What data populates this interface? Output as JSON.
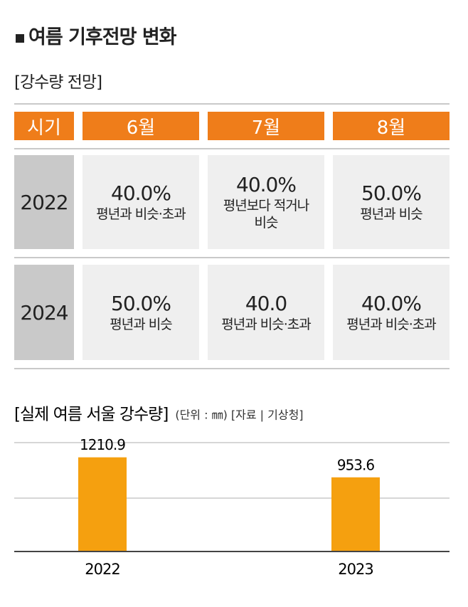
{
  "header": {
    "title": "여름 기후전망 변화"
  },
  "table": {
    "title": "[강수량 전망]",
    "columns": [
      "시기",
      "6월",
      "7월",
      "8월"
    ],
    "rows": [
      {
        "year": "2022",
        "cells": [
          {
            "value": "40.0%",
            "desc": "평년과 비슷·초과"
          },
          {
            "value": "40.0%",
            "desc": "평년보다 적거나 비슷"
          },
          {
            "value": "50.0%",
            "desc": "평년과 비슷"
          }
        ]
      },
      {
        "year": "2024",
        "cells": [
          {
            "value": "50.0%",
            "desc": "평년과 비슷"
          },
          {
            "value": "40.0",
            "desc": "평년과 비슷·초과"
          },
          {
            "value": "40.0%",
            "desc": "평년과 비슷·초과"
          }
        ]
      }
    ]
  },
  "chart_data": {
    "type": "bar",
    "title": "[실제 여름 서울 강수량]",
    "subtitle": "(단위 : ㎜) [자료 | 기상청]",
    "categories": [
      "2022",
      "2023"
    ],
    "values": [
      1210.9,
      953.6
    ],
    "color": "#f5a00f",
    "ylim": [
      0,
      1400
    ]
  }
}
